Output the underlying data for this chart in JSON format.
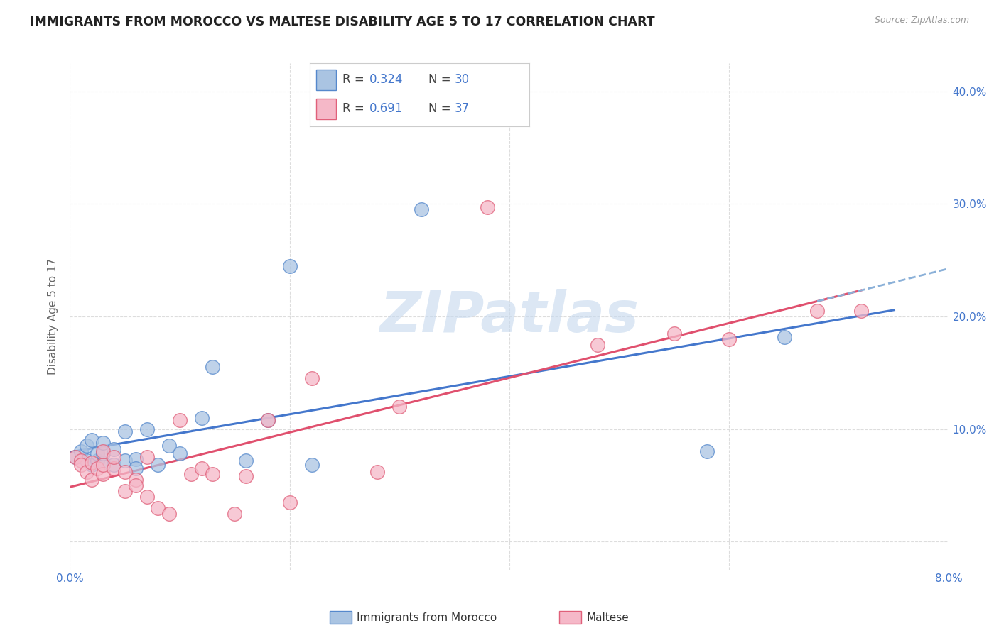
{
  "title": "IMMIGRANTS FROM MOROCCO VS MALTESE DISABILITY AGE 5 TO 17 CORRELATION CHART",
  "source": "Source: ZipAtlas.com",
  "ylabel": "Disability Age 5 to 17",
  "xlim": [
    0.0,
    0.08
  ],
  "ylim": [
    -0.025,
    0.425
  ],
  "ytick_positions": [
    0.0,
    0.1,
    0.2,
    0.3,
    0.4
  ],
  "ytick_labels": [
    "",
    "10.0%",
    "20.0%",
    "30.0%",
    "40.0%"
  ],
  "xtick_positions": [
    0.0,
    0.02,
    0.04,
    0.06,
    0.08
  ],
  "xtick_labels": [
    "0.0%",
    "",
    "",
    "",
    "8.0%"
  ],
  "morocco_fill": "#aac4e2",
  "morocco_edge": "#5588cc",
  "maltese_fill": "#f5b8c8",
  "maltese_edge": "#e0607a",
  "blue_line_color": "#4477cc",
  "pink_line_color": "#e0506e",
  "dashed_line_color": "#8ab0d8",
  "background_color": "#ffffff",
  "grid_color": "#dddddd",
  "watermark": "ZIPatlas",
  "morocco_R": "0.324",
  "morocco_N": "30",
  "maltese_R": "0.691",
  "maltese_N": "37",
  "legend_label1": "Immigrants from Morocco",
  "legend_label2": "Maltese",
  "morocco_x": [
    0.0005,
    0.001,
    0.0015,
    0.0015,
    0.002,
    0.002,
    0.0025,
    0.0025,
    0.003,
    0.003,
    0.003,
    0.004,
    0.004,
    0.005,
    0.005,
    0.006,
    0.006,
    0.007,
    0.008,
    0.009,
    0.01,
    0.012,
    0.013,
    0.016,
    0.018,
    0.02,
    0.022,
    0.032,
    0.058,
    0.065
  ],
  "morocco_y": [
    0.075,
    0.08,
    0.072,
    0.085,
    0.068,
    0.09,
    0.072,
    0.078,
    0.07,
    0.078,
    0.088,
    0.068,
    0.082,
    0.072,
    0.098,
    0.073,
    0.065,
    0.1,
    0.068,
    0.085,
    0.078,
    0.11,
    0.155,
    0.072,
    0.108,
    0.245,
    0.068,
    0.295,
    0.08,
    0.182
  ],
  "maltese_x": [
    0.0005,
    0.001,
    0.001,
    0.0015,
    0.002,
    0.002,
    0.0025,
    0.003,
    0.003,
    0.003,
    0.004,
    0.004,
    0.005,
    0.005,
    0.006,
    0.006,
    0.007,
    0.007,
    0.008,
    0.009,
    0.01,
    0.011,
    0.012,
    0.013,
    0.015,
    0.016,
    0.018,
    0.02,
    0.022,
    0.028,
    0.03,
    0.038,
    0.048,
    0.055,
    0.06,
    0.068,
    0.072
  ],
  "maltese_y": [
    0.075,
    0.072,
    0.068,
    0.062,
    0.07,
    0.055,
    0.065,
    0.06,
    0.068,
    0.08,
    0.065,
    0.075,
    0.062,
    0.045,
    0.055,
    0.05,
    0.075,
    0.04,
    0.03,
    0.025,
    0.108,
    0.06,
    0.065,
    0.06,
    0.025,
    0.058,
    0.108,
    0.035,
    0.145,
    0.062,
    0.12,
    0.297,
    0.175,
    0.185,
    0.18,
    0.205,
    0.205
  ],
  "morocco_line_intercept": 0.078,
  "morocco_line_slope": 1.65,
  "maltese_line_intercept": 0.028,
  "maltese_line_slope": 2.85
}
